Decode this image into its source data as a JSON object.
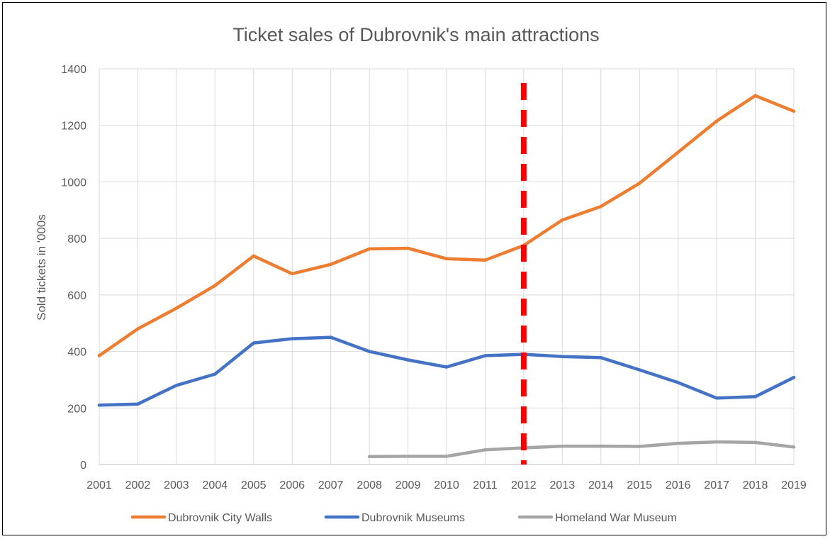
{
  "chart_data": {
    "type": "line",
    "title": "Ticket sales of Dubrovnik's main attractions",
    "xlabel": "",
    "ylabel": "Sold tickets in '000s",
    "ylim": [
      0,
      1400
    ],
    "yticks": [
      0,
      200,
      400,
      600,
      800,
      1000,
      1200,
      1400
    ],
    "x": [
      "2001",
      "2002",
      "2003",
      "2004",
      "2005",
      "2006",
      "2007",
      "2008",
      "2009",
      "2010",
      "2011",
      "2012",
      "2013",
      "2014",
      "2015",
      "2016",
      "2017",
      "2018",
      "2019"
    ],
    "grid": true,
    "legend_position": "bottom",
    "series": [
      {
        "name": "Dubrovnik City Walls",
        "color": "#ED7D31",
        "values": [
          385,
          480,
          553,
          633,
          738,
          675,
          708,
          763,
          765,
          728,
          723,
          775,
          865,
          913,
          995,
          1105,
          1215,
          1305,
          1250
        ]
      },
      {
        "name": "Dubrovnik Museums",
        "color": "#4472C4",
        "values": [
          210,
          214,
          280,
          320,
          430,
          445,
          450,
          400,
          370,
          345,
          385,
          390,
          382,
          378,
          335,
          290,
          235,
          240,
          308
        ]
      },
      {
        "name": "Homeland War Museum",
        "color": "#A5A5A5",
        "values": [
          null,
          null,
          null,
          null,
          null,
          null,
          null,
          28,
          29,
          29,
          52,
          59,
          65,
          65,
          64,
          75,
          80,
          78,
          62
        ]
      }
    ],
    "annotations": [
      {
        "type": "vertical-dashed-line",
        "x": "2012",
        "color": "#FF0000"
      }
    ]
  }
}
